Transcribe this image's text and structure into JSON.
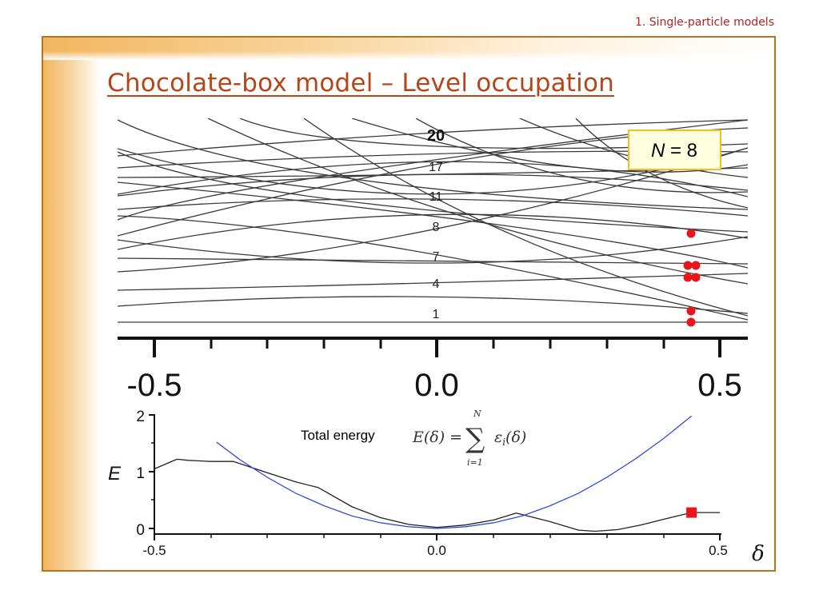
{
  "header": {
    "section": "1. Single-particle models"
  },
  "slide": {
    "title": "Chocolate-box model – Level occupation"
  },
  "chart_data": [
    {
      "type": "line",
      "panel": "single-particle levels",
      "level_labels": [
        "20",
        "17",
        "11",
        "8",
        "7",
        "4",
        "1"
      ],
      "annotation": {
        "N_symbol": "N",
        "N_equals": " = 8"
      },
      "xlim": [
        -0.5,
        0.5
      ],
      "x_ticks": [
        "-0.5",
        "0.0",
        "0.5"
      ],
      "occupied_delta": 0.45,
      "occupied_dots": 7,
      "colors": {
        "lines": "#333333",
        "dots": "#e8151b",
        "box_border": "#f0c020",
        "box_fill": "#ffffe0"
      }
    },
    {
      "type": "line",
      "panel": "total energy",
      "ylabel": "E",
      "xlabel": "δ",
      "xlim": [
        -0.5,
        0.5
      ],
      "ylim": [
        0,
        2
      ],
      "x_ticks": [
        "-0.5",
        "0.0",
        "0.5"
      ],
      "y_ticks": [
        "0",
        "1",
        "2"
      ],
      "annotation": "Total energy",
      "formula": {
        "lhs": "E(δ) =",
        "sum": "∑",
        "upper": "N",
        "lower": "i=1",
        "term": "ε",
        "sub": "i",
        "arg": "(δ)"
      },
      "series": [
        {
          "x": [
            -0.5,
            -0.46,
            -0.44,
            -0.4,
            -0.36,
            -0.3,
            -0.25,
            -0.21,
            -0.15,
            -0.1,
            -0.05,
            0.0,
            0.05,
            0.1,
            0.14,
            0.2,
            0.25,
            0.28,
            0.32,
            0.36,
            0.4,
            0.45,
            0.5
          ],
          "values": [
            1.05,
            1.22,
            1.2,
            1.18,
            1.18,
            0.98,
            0.82,
            0.72,
            0.38,
            0.19,
            0.07,
            0.02,
            0.06,
            0.15,
            0.27,
            0.12,
            -0.03,
            -0.05,
            -0.02,
            0.06,
            0.16,
            0.28,
            0.28
          ]
        },
        {
          "x": [
            -0.39,
            -0.35,
            -0.3,
            -0.25,
            -0.2,
            -0.15,
            -0.1,
            -0.05,
            0.0,
            0.05,
            0.1,
            0.15,
            0.2,
            0.25,
            0.3,
            0.35,
            0.4,
            0.45
          ],
          "values": [
            1.52,
            1.22,
            0.9,
            0.62,
            0.4,
            0.22,
            0.1,
            0.03,
            0.0,
            0.03,
            0.1,
            0.22,
            0.4,
            0.62,
            0.9,
            1.22,
            1.58,
            1.98
          ]
        }
      ],
      "marker": {
        "x": 0.45,
        "y": 0.28,
        "color": "#e8151b"
      },
      "colors": {
        "total": "#222222",
        "parabola": "#1f3fe0"
      }
    }
  ]
}
